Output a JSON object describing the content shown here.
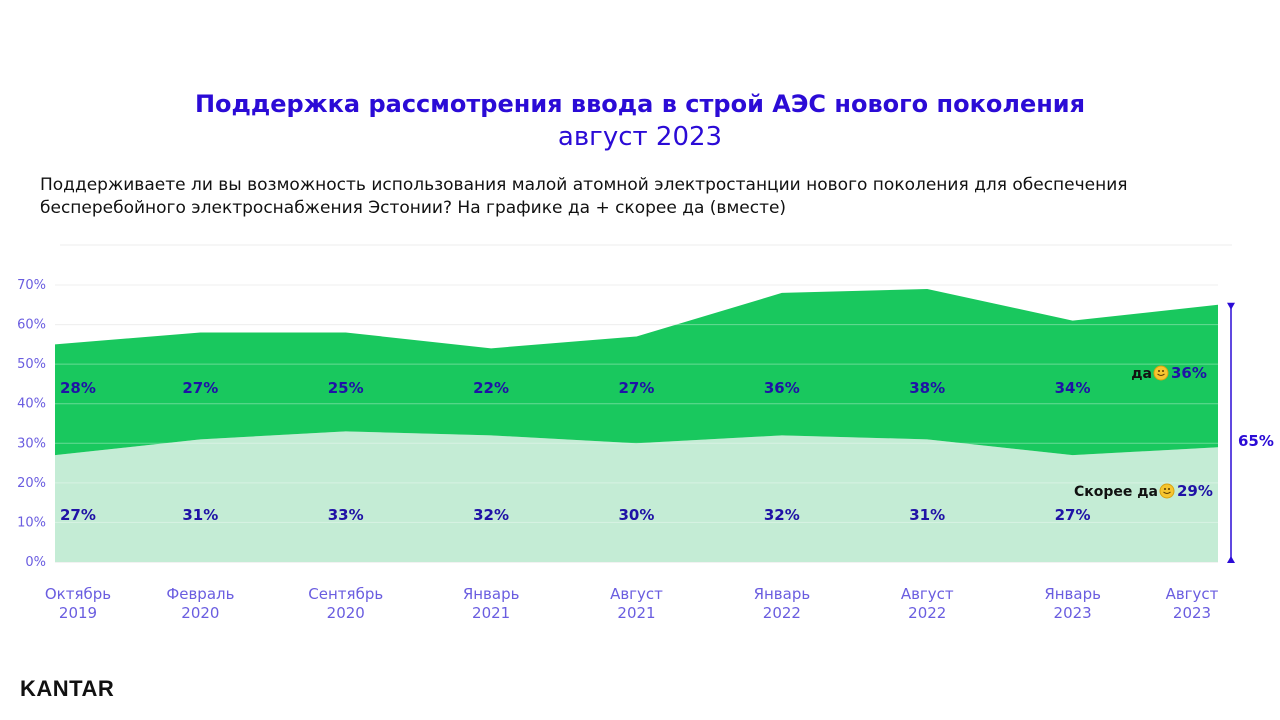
{
  "title": "Поддержка рассмотрения ввода в строй АЭС нового поколения",
  "subtitle": "август 2023",
  "question": "Поддерживаете ли вы возможность использования малой атомной электростанции нового поколения для обеспечения бесперебойного электроснабжения Эстонии? На графике да + скорее да (вместе)",
  "logo_text": "KANTAR",
  "colors": {
    "title": "#2b0bd6",
    "axis_text": "#6a5de0",
    "value_label": "#1f12a6",
    "yes_area": "#19c85e",
    "rather_yes_area": "#c4ecd5",
    "total_marker": "#2b0bd6"
  },
  "chart_data": {
    "type": "area",
    "stacked": true,
    "categories": [
      [
        "Октябрь",
        "2019"
      ],
      [
        "Февраль",
        "2020"
      ],
      [
        "Сентябрь",
        "2020"
      ],
      [
        "Январь",
        "2021"
      ],
      [
        "Август",
        "2021"
      ],
      [
        "Январь",
        "2022"
      ],
      [
        "Август",
        "2022"
      ],
      [
        "Январь",
        "2023"
      ],
      [
        "Август",
        "2023"
      ]
    ],
    "yticks": [
      "0%",
      "10%",
      "20%",
      "30%",
      "40%",
      "50%",
      "60%",
      "70%"
    ],
    "ylim": [
      0,
      70
    ],
    "grid": true,
    "series": [
      {
        "name": "Скорее да",
        "values": [
          27,
          31,
          33,
          32,
          30,
          32,
          31,
          27,
          29
        ],
        "labels": [
          "27%",
          "31%",
          "33%",
          "32%",
          "30%",
          "32%",
          "31%",
          "27%",
          "29%"
        ]
      },
      {
        "name": "да",
        "values": [
          28,
          27,
          25,
          22,
          27,
          36,
          38,
          34,
          36
        ],
        "labels": [
          "28%",
          "27%",
          "25%",
          "22%",
          "27%",
          "36%",
          "38%",
          "34%",
          "36%"
        ]
      }
    ],
    "total_label": "65%"
  }
}
